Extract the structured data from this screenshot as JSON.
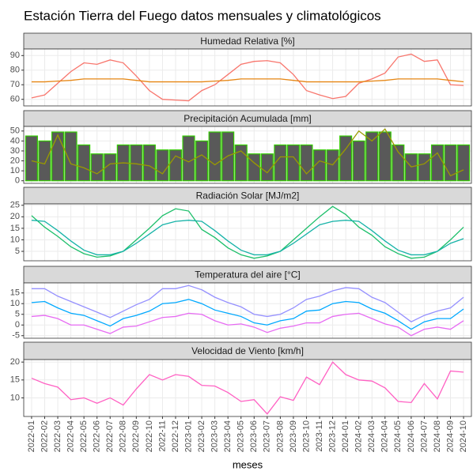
{
  "title": "Estación Tierra del Fuego datos mensuales y climatológicos",
  "chart_data": [
    {
      "type": "line",
      "title": "Humedad Relativa [%]",
      "ylim": [
        55.5,
        94.5
      ],
      "yticks": [
        60,
        70,
        80,
        90
      ],
      "grid": true,
      "series": [
        {
          "color": "#f8766d",
          "values": [
            61,
            63,
            71,
            79,
            85,
            84,
            87,
            85,
            76,
            66,
            60,
            59.5,
            59,
            66,
            70,
            77,
            84,
            86,
            86.5,
            85,
            77,
            66,
            63,
            60.5,
            62,
            71,
            74,
            78,
            89,
            91,
            86,
            87,
            70,
            69.5
          ]
        },
        {
          "color": "#e68613",
          "values": [
            72,
            72,
            72.5,
            73,
            74,
            74,
            74,
            74,
            73,
            72,
            72,
            72,
            72,
            72,
            72.5,
            73,
            74,
            74,
            74,
            74,
            73,
            72,
            72,
            72,
            72,
            72,
            72.5,
            73,
            74,
            74,
            74,
            74,
            73,
            72
          ]
        }
      ]
    },
    {
      "type": "bar",
      "title": "Precipitación Acumulada [mm]",
      "ylim": [
        -2.6,
        54.6
      ],
      "yticks": [
        0,
        10,
        20,
        30,
        40,
        50
      ],
      "grid": true,
      "color": "#595959",
      "edgecolor": "#33cc00",
      "values": [
        45,
        40,
        49,
        49,
        36,
        27,
        27,
        36,
        36,
        36,
        31,
        31,
        45,
        40,
        49,
        49,
        36,
        27,
        27,
        36,
        36,
        36,
        31,
        31,
        45,
        40,
        49,
        49,
        36,
        27,
        27,
        36,
        36,
        36
      ],
      "series": [
        {
          "color": "#9a9a00",
          "values": [
            20,
            17,
            46,
            17,
            13,
            7,
            17,
            18,
            17,
            15,
            7,
            25,
            19,
            26,
            16,
            25,
            30,
            18,
            8,
            24,
            24,
            7,
            20,
            16,
            32,
            50,
            40,
            52,
            29,
            14,
            17,
            28,
            5,
            11
          ]
        }
      ]
    },
    {
      "type": "line",
      "title": "Radiación Solar [MJ/m2]",
      "ylim": [
        0.9,
        25.6
      ],
      "yticks": [
        5,
        10,
        15,
        20,
        25
      ],
      "grid": true,
      "series": [
        {
          "color": "#1cbf6a",
          "values": [
            20.5,
            15.5,
            11.5,
            7,
            4,
            2.5,
            3,
            5,
            10,
            15,
            20.5,
            23.5,
            22.5,
            14.5,
            11,
            6.5,
            3.5,
            2,
            3,
            5,
            10,
            15,
            20,
            24.5,
            21,
            15.5,
            12,
            7,
            4,
            2,
            2.5,
            5,
            10,
            15.5
          ]
        },
        {
          "color": "#17b3a8",
          "values": [
            18.5,
            18,
            14,
            9.5,
            5.5,
            3.5,
            3.5,
            5,
            8.5,
            12.5,
            16.5,
            18,
            18.5,
            18,
            14,
            9.5,
            5.5,
            3.5,
            3.5,
            5,
            8.5,
            12.5,
            16.5,
            18,
            18.5,
            18,
            14,
            9.5,
            5.5,
            3.5,
            3.5,
            5,
            8.5,
            10.5
          ]
        }
      ]
    },
    {
      "type": "line",
      "title": "Temperatura del aire [°C]",
      "ylim": [
        -6.2,
        19.7
      ],
      "yticks": [
        -5,
        0,
        5,
        10,
        15
      ],
      "grid": true,
      "series": [
        {
          "color": "#9590ff",
          "values": [
            17,
            17,
            13.5,
            11,
            8.5,
            6,
            3.5,
            6.5,
            9.5,
            12,
            17,
            17,
            18.5,
            16.5,
            13,
            10.5,
            8.5,
            5,
            4,
            5,
            8,
            12,
            13.5,
            16,
            17.5,
            17,
            13,
            10.5,
            6,
            1.5,
            4.5,
            6.5,
            8,
            13
          ]
        },
        {
          "color": "#00a9ff",
          "values": [
            10.5,
            11,
            8,
            5.5,
            4.5,
            2,
            -0.5,
            3,
            4.5,
            6.5,
            10,
            10.5,
            12,
            10,
            7,
            5.5,
            4,
            1,
            0,
            2,
            3,
            6.5,
            7,
            10,
            11,
            10.5,
            7.5,
            5.5,
            2,
            -2,
            1.5,
            3,
            3,
            7.5
          ]
        },
        {
          "color": "#e76bf3",
          "values": [
            4,
            4.5,
            3,
            0,
            0,
            -2,
            -4,
            -1,
            -0.5,
            1.5,
            3.5,
            4,
            5.5,
            5,
            2,
            0,
            0.5,
            -1,
            -3.5,
            -1.5,
            -0.5,
            1,
            1,
            4,
            5,
            5.5,
            3,
            0.5,
            -1,
            -5,
            -2,
            -1,
            -2,
            2
          ]
        }
      ]
    },
    {
      "type": "line",
      "title": "Velocidad de Viento [km/h]",
      "ylim": [
        4.8,
        20.7
      ],
      "yticks": [
        10,
        15,
        20
      ],
      "grid": true,
      "x_label": "meses",
      "categories": [
        "2022-01",
        "2022-02",
        "2022-03",
        "2022-04",
        "2022-05",
        "2022-06",
        "2022-07",
        "2022-08",
        "2022-09",
        "2022-10",
        "2022-11",
        "2022-12",
        "2023-01",
        "2023-02",
        "2023-03",
        "2023-04",
        "2023-05",
        "2023-06",
        "2023-07",
        "2023-08",
        "2023-09",
        "2023-10",
        "2023-11",
        "2023-12",
        "2024-01",
        "2024-02",
        "2024-03",
        "2024-04",
        "2024-05",
        "2024-06",
        "2024-07",
        "2024-08",
        "2024-09",
        "2024-10"
      ],
      "series": [
        {
          "color": "#ff61c3",
          "values": [
            15.5,
            14,
            13,
            9.5,
            10,
            8.5,
            10,
            8,
            12.5,
            16.5,
            15,
            16.5,
            16,
            13.5,
            13.3,
            11.5,
            9,
            9.5,
            5.5,
            10.3,
            9.3,
            15.8,
            13.7,
            20,
            16.5,
            15,
            14.7,
            12.8,
            9,
            8.7,
            14,
            9.7,
            17.5,
            17.2
          ]
        }
      ]
    }
  ]
}
